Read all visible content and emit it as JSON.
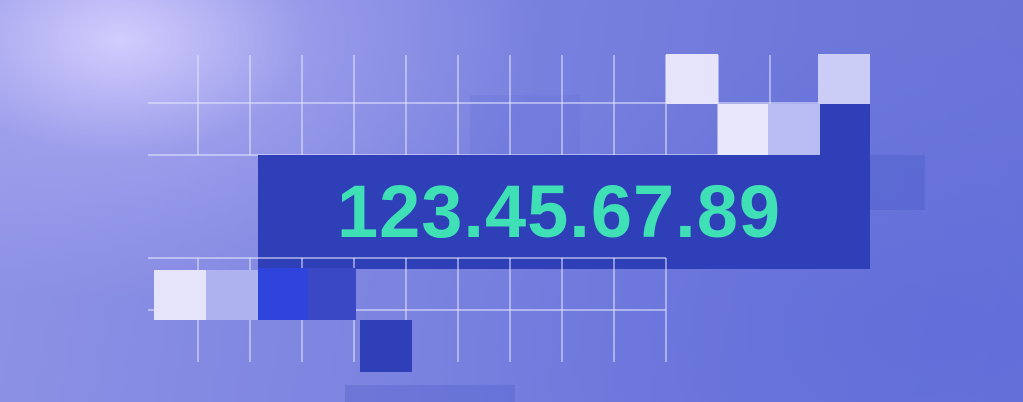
{
  "banner": {
    "highlighted_value": "123.45.67.89"
  },
  "colors": {
    "background_light": "#d6d0ff",
    "background_mid": "#7c84e0",
    "background_dark": "#6a74d8",
    "highlight_box": "#2f3fb8",
    "highlight_text": "#3fe0b6",
    "grid_line": "#e6e8ff",
    "tile_light": "#e8e6fb",
    "tile_dark": "#2f3fb8"
  }
}
